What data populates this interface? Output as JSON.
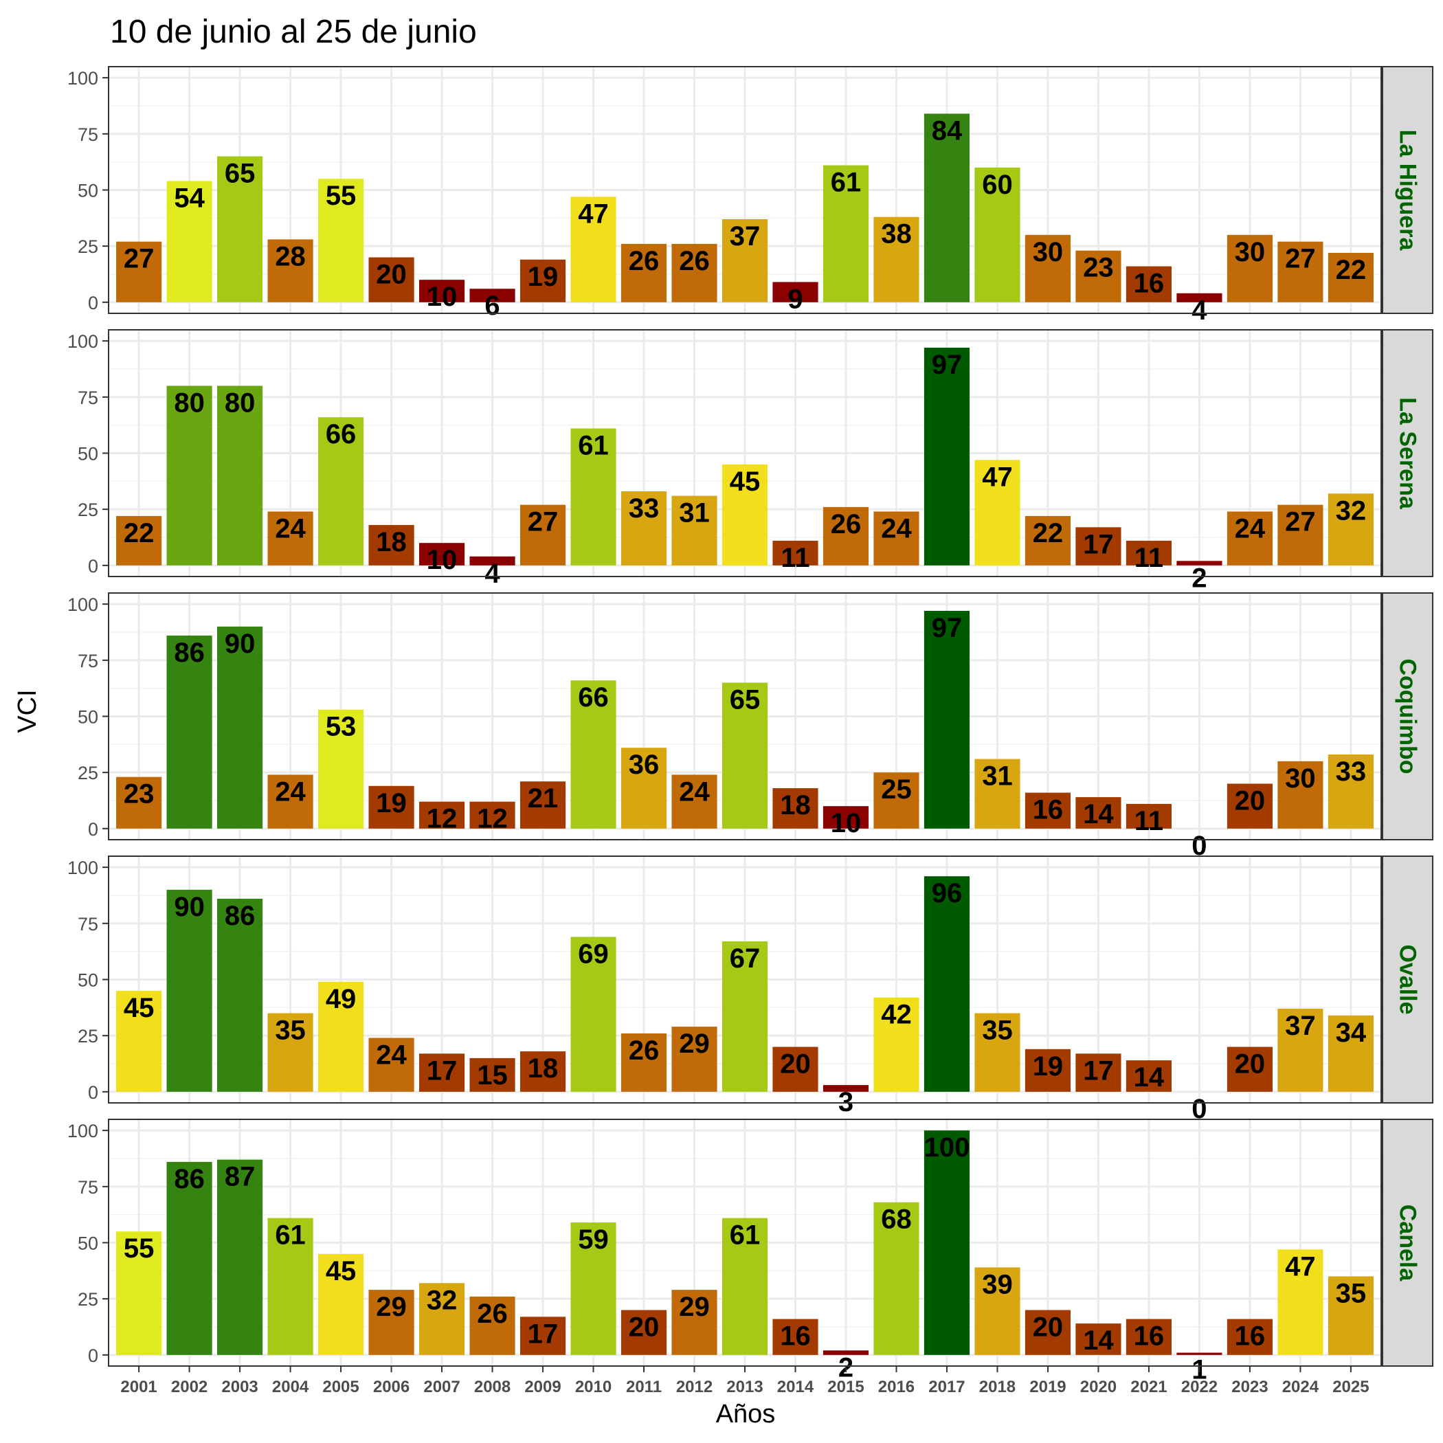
{
  "chart_data": {
    "type": "bar",
    "title": "10 de junio al 25 de junio",
    "xlabel": "Años",
    "ylabel": "VCI",
    "ylim": [
      0,
      100
    ],
    "yticks": [
      "0",
      "25",
      "50",
      "75",
      "100"
    ],
    "grid": true,
    "facet_label_color": "#006400",
    "categories": [
      "2001",
      "2002",
      "2003",
      "2004",
      "2005",
      "2006",
      "2007",
      "2008",
      "2009",
      "2010",
      "2011",
      "2012",
      "2013",
      "2014",
      "2015",
      "2016",
      "2017",
      "2018",
      "2019",
      "2020",
      "2021",
      "2022",
      "2023",
      "2024",
      "2025"
    ],
    "series": [
      {
        "name": "La Higuera",
        "values": [
          27,
          54,
          65,
          28,
          55,
          20,
          10,
          6,
          19,
          47,
          26,
          26,
          37,
          9,
          61,
          38,
          84,
          60,
          30,
          23,
          16,
          4,
          30,
          27,
          22
        ]
      },
      {
        "name": "La Serena",
        "values": [
          22,
          80,
          80,
          24,
          66,
          18,
          10,
          4,
          27,
          61,
          33,
          31,
          45,
          11,
          26,
          24,
          97,
          47,
          22,
          17,
          11,
          2,
          24,
          27,
          32
        ]
      },
      {
        "name": "Coquimbo",
        "values": [
          23,
          86,
          90,
          24,
          53,
          19,
          12,
          12,
          21,
          66,
          36,
          24,
          65,
          18,
          10,
          25,
          97,
          31,
          16,
          14,
          11,
          0,
          20,
          30,
          33
        ]
      },
      {
        "name": "Ovalle",
        "values": [
          45,
          90,
          86,
          35,
          49,
          24,
          17,
          15,
          18,
          69,
          26,
          29,
          67,
          20,
          3,
          42,
          96,
          35,
          19,
          17,
          14,
          0,
          20,
          37,
          34
        ]
      },
      {
        "name": "Canela",
        "values": [
          55,
          86,
          87,
          61,
          45,
          29,
          32,
          26,
          17,
          59,
          20,
          29,
          61,
          16,
          2,
          68,
          100,
          39,
          20,
          14,
          16,
          1,
          16,
          47,
          35
        ]
      }
    ],
    "color_scale": [
      {
        "min": 0,
        "color": "#8b0000"
      },
      {
        "min": 11,
        "color": "#a33a00"
      },
      {
        "min": 22,
        "color": "#c06b08"
      },
      {
        "min": 31,
        "color": "#d8a610"
      },
      {
        "min": 41,
        "color": "#f2df1c"
      },
      {
        "min": 51,
        "color": "#dfeb1e"
      },
      {
        "min": 56,
        "color": "#a5c914"
      },
      {
        "min": 71,
        "color": "#6aa512"
      },
      {
        "min": 82,
        "color": "#358310"
      },
      {
        "min": 95,
        "color": "#005a00"
      }
    ]
  }
}
